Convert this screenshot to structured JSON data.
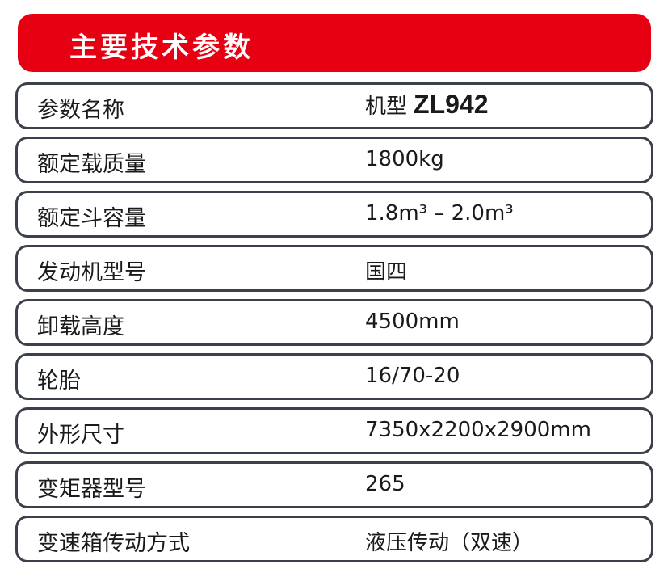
{
  "header": {
    "title": "主要技术参数",
    "color": "#e60012"
  },
  "table": {
    "header_row": {
      "label": "参数名称",
      "value_prefix": "机型",
      "model": "ZL942"
    },
    "rows": [
      {
        "label": "额定载质量",
        "value": "1800kg"
      },
      {
        "label": "额定斗容量",
        "value": "1.8m³ – 2.0m³"
      },
      {
        "label": "发动机型号",
        "value": "国四"
      },
      {
        "label": "卸载高度",
        "value": "4500mm"
      },
      {
        "label": "轮胎",
        "value": "16/70-20"
      },
      {
        "label": "外形尺寸",
        "value": "7350x2200x2900mm"
      },
      {
        "label": "变矩器型号",
        "value": "265"
      },
      {
        "label": "变速箱传动方式",
        "value": "液压传动（双速）"
      }
    ]
  }
}
